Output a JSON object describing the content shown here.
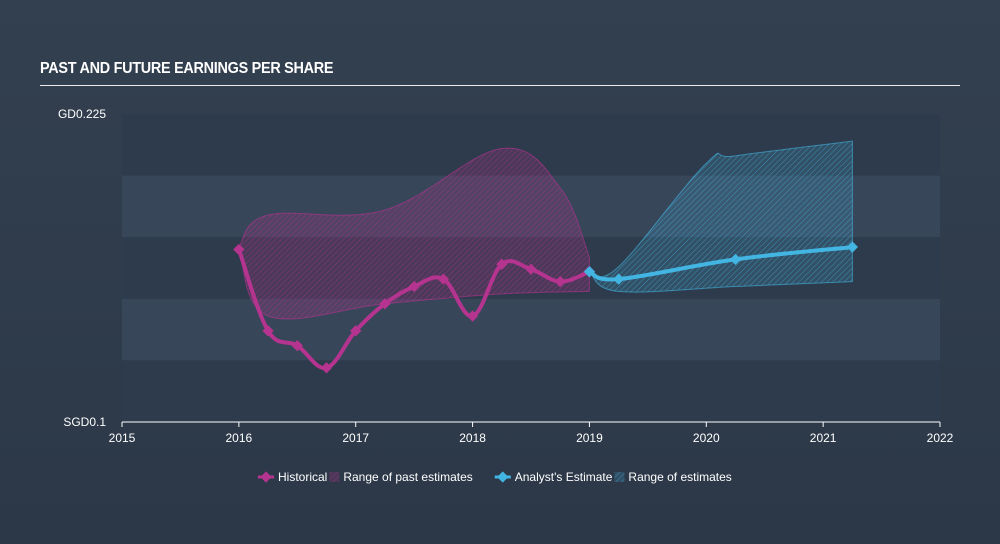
{
  "title": "PAST AND FUTURE EARNINGS PER SHARE",
  "colors": {
    "historical": "#b5348f",
    "estimate": "#43b5e2",
    "band_light": "#38465a",
    "band_dark": "#2e3b4c",
    "axis": "#ffffff"
  },
  "chart_data": {
    "type": "line",
    "x_range": [
      2015,
      2022
    ],
    "y_range": [
      0.1,
      0.225
    ],
    "x_ticks": [
      "2015",
      "2016",
      "2017",
      "2018",
      "2019",
      "2020",
      "2021",
      "2022"
    ],
    "y_axis_labels": {
      "top": "GD0.225",
      "bottom": "SGD0.1"
    },
    "series": [
      {
        "name": "Historical",
        "color": "#b5348f",
        "points": [
          [
            2016.0,
            0.17
          ],
          [
            2016.25,
            0.137
          ],
          [
            2016.5,
            0.131
          ],
          [
            2016.75,
            0.122
          ],
          [
            2017.0,
            0.137
          ],
          [
            2017.25,
            0.148
          ],
          [
            2017.5,
            0.155
          ],
          [
            2017.75,
            0.158
          ],
          [
            2018.0,
            0.143
          ],
          [
            2018.25,
            0.164
          ],
          [
            2018.5,
            0.162
          ],
          [
            2018.75,
            0.157
          ],
          [
            2019.0,
            0.161
          ]
        ]
      },
      {
        "name": "Analyst's Estimate",
        "color": "#43b5e2",
        "points": [
          [
            2019.0,
            0.161
          ],
          [
            2019.25,
            0.158
          ],
          [
            2020.25,
            0.166
          ],
          [
            2021.25,
            0.171
          ]
        ]
      }
    ],
    "ranges": [
      {
        "name": "Range of past estimates",
        "color": "#b5348f",
        "upper": [
          [
            2016.0,
            0.171
          ],
          [
            2016.25,
            0.184
          ],
          [
            2017.25,
            0.186
          ],
          [
            2018.25,
            0.211
          ],
          [
            2018.75,
            0.195
          ],
          [
            2019.0,
            0.167
          ]
        ],
        "lower": [
          [
            2016.0,
            0.171
          ],
          [
            2016.25,
            0.143
          ],
          [
            2017.25,
            0.148
          ],
          [
            2018.25,
            0.152
          ],
          [
            2019.0,
            0.153
          ]
        ]
      },
      {
        "name": "Range of estimates",
        "color": "#43b5e2",
        "upper": [
          [
            2019.0,
            0.161
          ],
          [
            2019.25,
            0.163
          ],
          [
            2020.0,
            0.205
          ],
          [
            2020.25,
            0.208
          ],
          [
            2021.25,
            0.214
          ]
        ],
        "lower": [
          [
            2019.0,
            0.161
          ],
          [
            2019.25,
            0.153
          ],
          [
            2020.25,
            0.155
          ],
          [
            2021.25,
            0.157
          ]
        ]
      }
    ],
    "legend": [
      {
        "label": "Historical",
        "kind": "line",
        "color": "#b5348f"
      },
      {
        "label": "Range of past estimates",
        "kind": "range",
        "color": "#b5348f"
      },
      {
        "label": "Analyst's Estimate",
        "kind": "line",
        "color": "#43b5e2"
      },
      {
        "label": "Range of estimates",
        "kind": "range",
        "color": "#43b5e2"
      }
    ],
    "legend_position": "bottom-center",
    "grid": "horizontal bands"
  }
}
